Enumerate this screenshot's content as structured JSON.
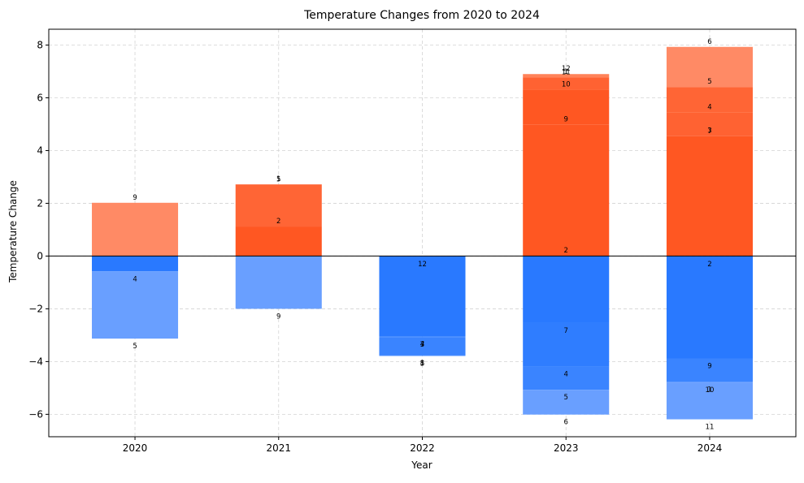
{
  "chart_data": {
    "type": "bar",
    "title": "Temperature Changes from 2020 to 2024",
    "xlabel": "Year",
    "ylabel": "Temperature Change",
    "categories": [
      "2020",
      "2021",
      "2022",
      "2023",
      "2024"
    ],
    "ylim": [
      -6.85,
      8.6
    ],
    "yticks": [
      -6,
      -4,
      -2,
      0,
      2,
      4,
      6,
      8
    ],
    "ytick_labels": [
      "−6",
      "−4",
      "−2",
      "0",
      "2",
      "4",
      "6",
      "8"
    ],
    "grid": true,
    "stacks": [
      {
        "category": "2020",
        "positive": [
          {
            "label": "9",
            "value": 2.02,
            "color": "#FF8A65"
          }
        ],
        "negative": [
          {
            "label": "4",
            "value": -0.58,
            "color": "#2979FF"
          },
          {
            "label": "5",
            "value": -2.55,
            "color": "#699FFF"
          }
        ]
      },
      {
        "category": "2021",
        "positive": [
          {
            "label": "2",
            "value": 1.12,
            "color": "#FF5722"
          },
          {
            "label": "5",
            "value": 1.58,
            "color": "#FF6535"
          },
          {
            "label": "1",
            "value": 0.02,
            "color": "#FF6535"
          }
        ],
        "negative": [
          {
            "label": "9",
            "value": -2.0,
            "color": "#699FFF"
          }
        ]
      },
      {
        "category": "2022",
        "positive": [],
        "negative": [
          {
            "label": "12",
            "value": -0.01,
            "color": "#2979FF"
          },
          {
            "label": "4",
            "value": -3.04,
            "color": "#2979FF"
          },
          {
            "label": "7",
            "value": -0.01,
            "color": "#3A84FF"
          },
          {
            "label": "3",
            "value": -0.01,
            "color": "#3A84FF"
          },
          {
            "label": "8",
            "value": -0.7,
            "color": "#3A84FF"
          },
          {
            "label": "1",
            "value": -0.01,
            "color": "#3A84FF"
          },
          {
            "label": "5",
            "value": -0.01,
            "color": "#3A84FF"
          }
        ]
      },
      {
        "category": "2023",
        "positive": [
          {
            "label": "2",
            "value": 0.01,
            "color": "#FF5722"
          },
          {
            "label": "9",
            "value": 4.98,
            "color": "#FF5722"
          },
          {
            "label": "10",
            "value": 1.32,
            "color": "#FF5722"
          },
          {
            "label": "11",
            "value": 0.46,
            "color": "#FF6232"
          },
          {
            "label": "1",
            "value": 0.01,
            "color": "#FF6232"
          },
          {
            "label": "12",
            "value": 0.12,
            "color": "#FF8359"
          }
        ],
        "negative": [
          {
            "label": "7",
            "value": -2.54,
            "color": "#2979FF"
          },
          {
            "label": "4",
            "value": -1.65,
            "color": "#2F7DFF"
          },
          {
            "label": "5",
            "value": -0.88,
            "color": "#3A84FF"
          },
          {
            "label": "6",
            "value": -0.94,
            "color": "#699FFF"
          }
        ]
      },
      {
        "category": "2024",
        "positive": [
          {
            "label": "7",
            "value": 4.54,
            "color": "#FF5722"
          },
          {
            "label": "3",
            "value": 0.01,
            "color": "#FF5722"
          },
          {
            "label": "4",
            "value": 0.9,
            "color": "#FF6232"
          },
          {
            "label": "5",
            "value": 0.96,
            "color": "#FF6535"
          },
          {
            "label": "6",
            "value": 1.52,
            "color": "#FF8A65"
          }
        ],
        "negative": [
          {
            "label": "2",
            "value": -0.01,
            "color": "#2979FF"
          },
          {
            "label": "9",
            "value": -3.87,
            "color": "#2979FF"
          },
          {
            "label": "1",
            "value": -0.9,
            "color": "#3A84FF"
          },
          {
            "label": "10",
            "value": -0.01,
            "color": "#699FFF"
          },
          {
            "label": "11",
            "value": -1.4,
            "color": "#699FFF"
          }
        ]
      }
    ]
  }
}
